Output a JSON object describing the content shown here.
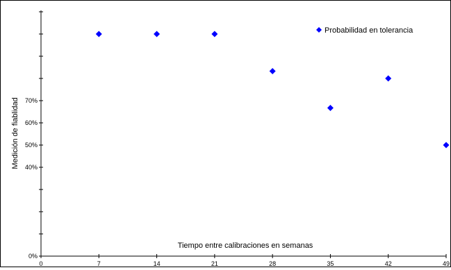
{
  "chart_data": {
    "type": "scatter",
    "title": "",
    "xlabel": "Tiempo entre calibraciones en semanas",
    "ylabel": "Medición de fiablidad",
    "xlim": [
      0,
      49
    ],
    "ylim": [
      0,
      1
    ],
    "x_ticks": [
      "0",
      "7",
      "14",
      "21",
      "28",
      "35",
      "42",
      "49"
    ],
    "y_tick_values": [
      0,
      0.4,
      0.5,
      0.6,
      0.7
    ],
    "y_ticks": [
      "0%",
      "40%",
      "50%",
      "60%",
      "70%"
    ],
    "grid": false,
    "legend": "top-right",
    "marker_color": "#0000ff",
    "marker": "diamond",
    "series": [
      {
        "name": "Probabilidad en tolerancia",
        "x": [
          7,
          14,
          21,
          28,
          35,
          42,
          49
        ],
        "y": [
          1.0,
          1.0,
          1.0,
          0.833,
          0.667,
          0.8,
          0.5
        ]
      }
    ]
  }
}
